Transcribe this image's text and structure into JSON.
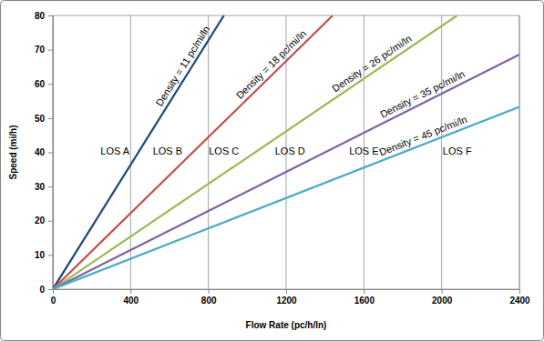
{
  "chart_data": {
    "type": "line",
    "x_label": "Flow Rate (pc/h/ln)",
    "y_label": "Speed (mi/h)",
    "xlim": [
      0,
      2400
    ],
    "ylim": [
      0,
      80
    ],
    "xticks": [
      0,
      400,
      800,
      1200,
      1600,
      2000,
      2400
    ],
    "yticks": [
      0,
      10,
      20,
      30,
      40,
      50,
      60,
      70,
      80
    ],
    "grid": true,
    "series": [
      {
        "name": "Density = 11 pc/mi/ln",
        "color": "#1f497d",
        "x": [
          0,
          880
        ],
        "values": [
          0,
          80
        ]
      },
      {
        "name": "Density = 18 pc/mi/ln",
        "color": "#c0504d",
        "x": [
          0,
          1440
        ],
        "values": [
          0,
          80
        ]
      },
      {
        "name": "Density = 26 pc/mi/ln",
        "color": "#9bbb59",
        "x": [
          0,
          2080
        ],
        "values": [
          0,
          80
        ]
      },
      {
        "name": "Density = 35 pc/mi/ln",
        "color": "#8064a2",
        "x": [
          0,
          2400
        ],
        "values": [
          0,
          68.6
        ]
      },
      {
        "name": "Density = 45 pc/mi/ln",
        "color": "#4bacc6",
        "x": [
          0,
          2400
        ],
        "values": [
          0,
          53.3
        ]
      }
    ],
    "annotations": [
      {
        "text": "LOS A",
        "x": 320,
        "y": 40
      },
      {
        "text": "LOS B",
        "x": 590,
        "y": 40
      },
      {
        "text": "LOS C",
        "x": 880,
        "y": 40
      },
      {
        "text": "LOS D",
        "x": 1220,
        "y": 40
      },
      {
        "text": "LOS E",
        "x": 1600,
        "y": 40
      },
      {
        "text": "LOS F",
        "x": 2080,
        "y": 40
      }
    ]
  }
}
